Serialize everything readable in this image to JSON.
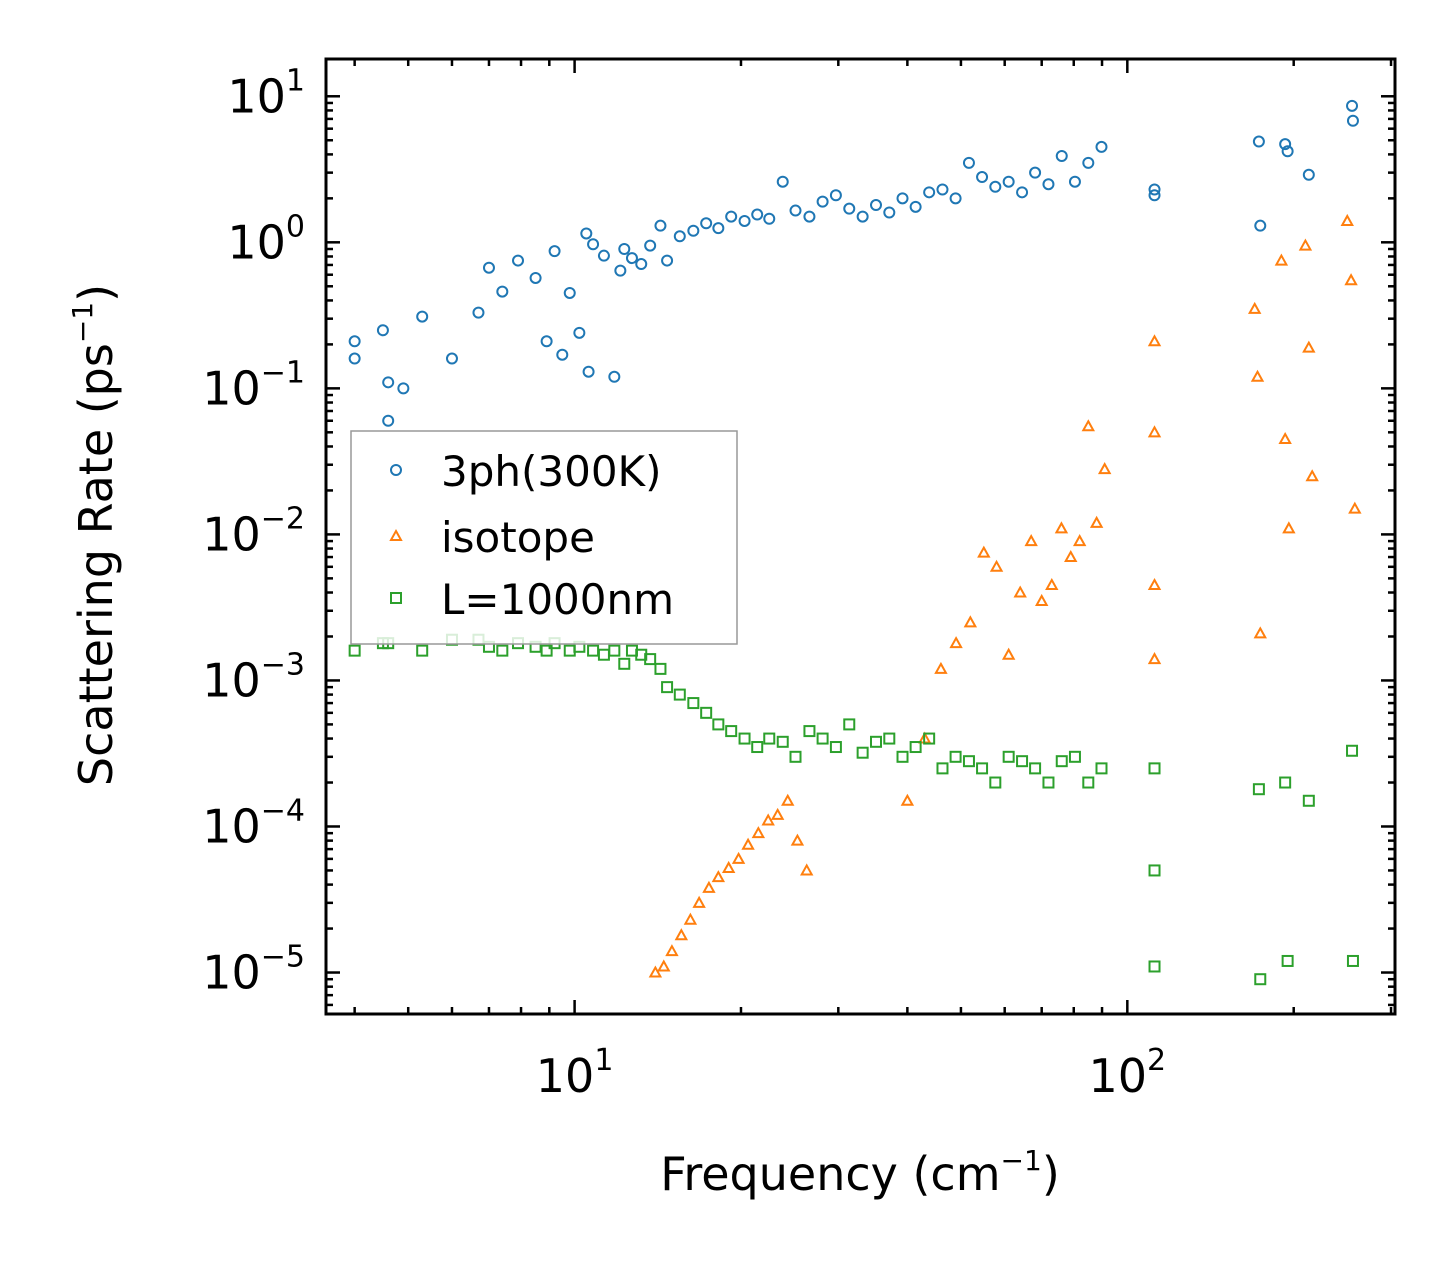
{
  "chart_data": {
    "type": "scatter",
    "title": "",
    "xlabel": "Frequency (cm",
    "xlabel_exp": "−1",
    "xlabel_close": ")",
    "ylabel": "Scattering Rate (ps",
    "ylabel_exp": "−1",
    "ylabel_close": ")",
    "xscale": "log",
    "yscale": "log",
    "xlim": [
      3.55,
      305
    ],
    "ylim": [
      5.2e-06,
      18
    ],
    "grid": false,
    "legend_position": "upper-left",
    "x_ticks": [
      {
        "value": 10,
        "base": "10",
        "exp": "1"
      },
      {
        "value": 100,
        "base": "10",
        "exp": "2"
      }
    ],
    "y_ticks": [
      {
        "value": 10,
        "base": "10",
        "exp": "1"
      },
      {
        "value": 1,
        "base": "10",
        "exp": "0"
      },
      {
        "value": 0.1,
        "base": "10",
        "exp": "−1"
      },
      {
        "value": 0.01,
        "base": "10",
        "exp": "−2"
      },
      {
        "value": 0.001,
        "base": "10",
        "exp": "−3"
      },
      {
        "value": 0.0001,
        "base": "10",
        "exp": "−4"
      },
      {
        "value": 1e-05,
        "base": "10",
        "exp": "−5"
      }
    ],
    "series": [
      {
        "name": "3ph(300K)",
        "marker": "circle",
        "color": "#1f77b4",
        "x": [
          4.0,
          4.0,
          4.5,
          4.6,
          4.6,
          4.9,
          5.3,
          6.0,
          6.7,
          7.0,
          7.4,
          7.9,
          8.5,
          8.9,
          9.2,
          9.5,
          9.8,
          10.2,
          10.5,
          10.6,
          10.8,
          11.3,
          11.8,
          12.1,
          12.3,
          12.7,
          13.2,
          13.7,
          14.3,
          14.7,
          15.5,
          16.4,
          17.3,
          18.2,
          19.2,
          20.3,
          21.4,
          22.5,
          23.8,
          25.1,
          26.6,
          28.1,
          29.7,
          31.4,
          33.2,
          35.1,
          37.1,
          39.2,
          41.4,
          43.8,
          46.3,
          48.9,
          51.7,
          54.6,
          57.7,
          61.0,
          64.5,
          68.1,
          72.0,
          76.1,
          80.4,
          85.0,
          89.8,
          112.0,
          112.0,
          173.0,
          174.0,
          193.0,
          195.0,
          213.0,
          255.0,
          256.0
        ],
        "y": [
          0.21,
          0.16,
          0.25,
          0.11,
          0.06,
          0.1,
          0.31,
          0.16,
          0.33,
          0.67,
          0.46,
          0.75,
          0.57,
          0.21,
          0.87,
          0.17,
          0.45,
          0.24,
          1.15,
          0.13,
          0.97,
          0.81,
          0.12,
          0.64,
          0.9,
          0.78,
          0.71,
          0.95,
          1.3,
          0.75,
          1.1,
          1.2,
          1.35,
          1.25,
          1.5,
          1.4,
          1.55,
          1.45,
          2.6,
          1.65,
          1.5,
          1.9,
          2.1,
          1.7,
          1.5,
          1.8,
          1.6,
          2.0,
          1.75,
          2.2,
          2.3,
          2.0,
          3.5,
          2.8,
          2.4,
          2.6,
          2.2,
          3.0,
          2.5,
          3.9,
          2.6,
          3.5,
          4.5,
          2.3,
          2.1,
          4.9,
          1.3,
          4.7,
          4.2,
          2.9,
          8.6,
          6.8
        ]
      },
      {
        "name": "isotope",
        "marker": "triangle",
        "color": "#ff7f0e",
        "x": [
          14.0,
          14.5,
          15.0,
          15.6,
          16.2,
          16.8,
          17.5,
          18.2,
          19.0,
          19.8,
          20.6,
          21.5,
          22.4,
          23.3,
          24.3,
          25.3,
          26.3,
          40.0,
          43.0,
          46.0,
          49.0,
          52.0,
          55.0,
          58.0,
          61.0,
          64.0,
          67.0,
          70.0,
          73.0,
          76.0,
          79.0,
          82.0,
          85.0,
          88.0,
          91.0,
          112.0,
          112.0,
          112.0,
          112.0,
          170.0,
          172.0,
          174.0,
          190.0,
          193.0,
          196.0,
          210.0,
          213.0,
          216.0,
          250.0,
          254.0,
          258.0
        ],
        "y": [
          1e-05,
          1.1e-05,
          1.4e-05,
          1.8e-05,
          2.3e-05,
          3e-05,
          3.8e-05,
          4.5e-05,
          5.2e-05,
          6e-05,
          7.5e-05,
          9e-05,
          0.00011,
          0.00012,
          0.00015,
          8e-05,
          5e-05,
          0.00015,
          0.0004,
          0.0012,
          0.0018,
          0.0025,
          0.0075,
          0.006,
          0.0015,
          0.004,
          0.009,
          0.0035,
          0.0045,
          0.011,
          0.007,
          0.009,
          0.055,
          0.012,
          0.028,
          0.21,
          0.05,
          0.0045,
          0.0014,
          0.35,
          0.12,
          0.0021,
          0.75,
          0.045,
          0.011,
          0.95,
          0.19,
          0.025,
          1.4,
          0.55,
          0.015
        ]
      },
      {
        "name": "L=1000nm",
        "marker": "square",
        "color": "#2ca02c",
        "x": [
          4.0,
          4.5,
          4.6,
          5.3,
          6.0,
          6.7,
          7.0,
          7.4,
          7.9,
          8.5,
          8.9,
          9.2,
          9.8,
          10.2,
          10.8,
          11.3,
          11.8,
          12.3,
          12.7,
          13.2,
          13.7,
          14.3,
          14.7,
          15.5,
          16.4,
          17.3,
          18.2,
          19.2,
          20.3,
          21.4,
          22.5,
          23.8,
          25.1,
          26.6,
          28.1,
          29.7,
          31.4,
          33.2,
          35.1,
          37.1,
          39.2,
          41.4,
          43.8,
          46.3,
          48.9,
          51.7,
          54.6,
          57.7,
          61.0,
          64.5,
          68.1,
          72.0,
          76.1,
          80.4,
          85.0,
          89.8,
          112.0,
          112.0,
          112.0,
          173.0,
          174.0,
          193.0,
          195.0,
          213.0,
          255.0,
          256.0
        ],
        "y": [
          0.0016,
          0.0018,
          0.0018,
          0.0016,
          0.0019,
          0.0019,
          0.0017,
          0.0016,
          0.0018,
          0.0017,
          0.0016,
          0.0018,
          0.0016,
          0.0017,
          0.0016,
          0.0015,
          0.0016,
          0.0013,
          0.0016,
          0.0015,
          0.0014,
          0.0012,
          0.0009,
          0.0008,
          0.0007,
          0.0006,
          0.0005,
          0.00045,
          0.0004,
          0.00035,
          0.0004,
          0.00038,
          0.0003,
          0.00045,
          0.0004,
          0.00035,
          0.0005,
          0.00032,
          0.00038,
          0.0004,
          0.0003,
          0.00035,
          0.0004,
          0.00025,
          0.0003,
          0.00028,
          0.00025,
          0.0002,
          0.0003,
          0.00028,
          0.00025,
          0.0002,
          0.00028,
          0.0003,
          0.0002,
          0.00025,
          0.00025,
          5e-05,
          1.1e-05,
          0.00018,
          9e-06,
          0.0002,
          1.2e-05,
          0.00015,
          0.00033,
          1.2e-05
        ]
      }
    ]
  }
}
